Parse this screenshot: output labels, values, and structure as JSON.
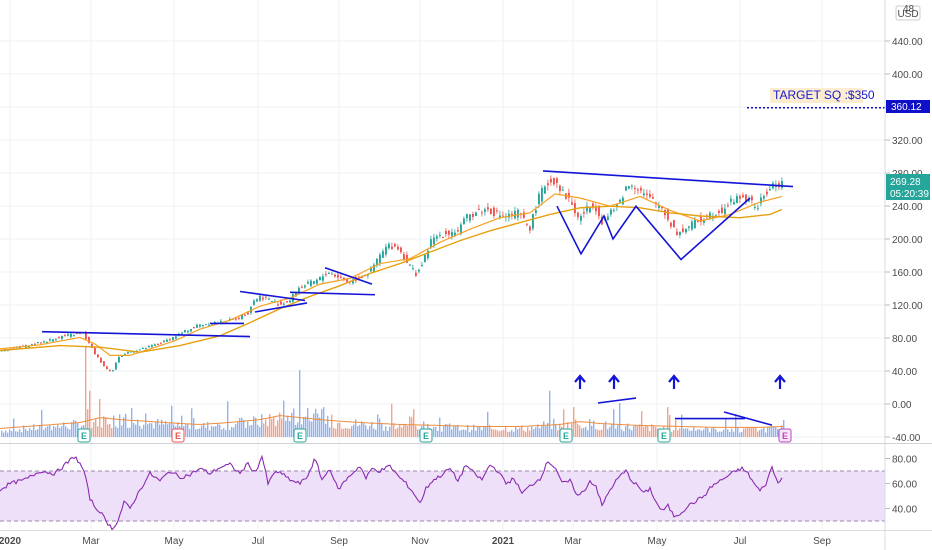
{
  "chart_data": {
    "type": "candlestick",
    "currency": "USD",
    "price_axis": {
      "range": [
        -46,
        482
      ],
      "ticks": [
        "440.00",
        "400.00",
        "360.00",
        "320.00",
        "280.00",
        "240.00",
        "200.00",
        "160.00",
        "120.00",
        "80.00",
        "40.00",
        "0.00",
        "-40.00"
      ],
      "top_partial_label": "48"
    },
    "rsi_axis": {
      "range": [
        25,
        91
      ],
      "ticks": [
        "80.00",
        "60.00",
        "40.00"
      ],
      "band": [
        30,
        70
      ]
    },
    "time_axis": {
      "labels": [
        "2020",
        "Mar",
        "May",
        "Jul",
        "Sep",
        "Nov",
        "2021",
        "Mar",
        "May",
        "Jul",
        "Sep"
      ],
      "bold_labels": [
        "2020",
        "2021"
      ]
    },
    "last_price": "269.28",
    "countdown": "05:20:39",
    "target_level": "360.12",
    "target_price": 360.12,
    "annotation": "TARGET SQ :$350",
    "price_waypoints": [
      [
        0,
        63
      ],
      [
        30,
        70
      ],
      [
        50,
        76
      ],
      [
        66,
        82
      ],
      [
        85,
        85
      ],
      [
        97,
        60
      ],
      [
        108,
        42
      ],
      [
        114,
        38
      ],
      [
        120,
        55
      ],
      [
        130,
        62
      ],
      [
        145,
        66
      ],
      [
        160,
        72
      ],
      [
        175,
        80
      ],
      [
        188,
        88
      ],
      [
        200,
        95
      ],
      [
        215,
        98
      ],
      [
        228,
        99
      ],
      [
        238,
        103
      ],
      [
        250,
        110
      ],
      [
        255,
        124
      ],
      [
        262,
        130
      ],
      [
        270,
        127
      ],
      [
        282,
        120
      ],
      [
        292,
        125
      ],
      [
        300,
        140
      ],
      [
        310,
        145
      ],
      [
        320,
        150
      ],
      [
        330,
        160
      ],
      [
        340,
        154
      ],
      [
        350,
        148
      ],
      [
        360,
        152
      ],
      [
        372,
        160
      ],
      [
        382,
        180
      ],
      [
        390,
        192
      ],
      [
        400,
        190
      ],
      [
        410,
        170
      ],
      [
        418,
        158
      ],
      [
        425,
        170
      ],
      [
        432,
        196
      ],
      [
        440,
        204
      ],
      [
        450,
        208
      ],
      [
        460,
        210
      ],
      [
        470,
        228
      ],
      [
        480,
        234
      ],
      [
        490,
        236
      ],
      [
        500,
        230
      ],
      [
        510,
        228
      ],
      [
        520,
        232
      ],
      [
        532,
        214
      ],
      [
        540,
        248
      ],
      [
        548,
        268
      ],
      [
        558,
        272
      ],
      [
        565,
        256
      ],
      [
        572,
        248
      ],
      [
        580,
        225
      ],
      [
        588,
        235
      ],
      [
        596,
        244
      ],
      [
        604,
        222
      ],
      [
        612,
        230
      ],
      [
        620,
        242
      ],
      [
        628,
        262
      ],
      [
        634,
        268
      ],
      [
        640,
        262
      ],
      [
        648,
        252
      ],
      [
        656,
        245
      ],
      [
        664,
        238
      ],
      [
        672,
        220
      ],
      [
        680,
        206
      ],
      [
        690,
        215
      ],
      [
        700,
        222
      ],
      [
        712,
        230
      ],
      [
        724,
        236
      ],
      [
        736,
        248
      ],
      [
        744,
        252
      ],
      [
        752,
        245
      ],
      [
        760,
        240
      ],
      [
        768,
        256
      ],
      [
        776,
        266
      ],
      [
        782,
        268
      ]
    ],
    "volume_waypoints": [
      [
        0,
        5
      ],
      [
        40,
        8
      ],
      [
        80,
        11
      ],
      [
        100,
        16
      ],
      [
        120,
        14
      ],
      [
        150,
        12
      ],
      [
        180,
        10
      ],
      [
        200,
        9
      ],
      [
        230,
        11
      ],
      [
        260,
        14
      ],
      [
        280,
        18
      ],
      [
        300,
        16
      ],
      [
        330,
        13
      ],
      [
        360,
        11
      ],
      [
        400,
        9
      ],
      [
        440,
        8
      ],
      [
        480,
        7
      ],
      [
        520,
        7
      ],
      [
        560,
        9
      ],
      [
        580,
        12
      ],
      [
        600,
        10
      ],
      [
        640,
        8
      ],
      [
        680,
        7
      ],
      [
        720,
        6
      ],
      [
        760,
        6
      ],
      [
        782,
        7
      ]
    ],
    "volume_spikes": [
      [
        85,
        110
      ],
      [
        89,
        55
      ],
      [
        94,
        75
      ],
      [
        99,
        45
      ],
      [
        180,
        58
      ],
      [
        227,
        42
      ],
      [
        256,
        65
      ],
      [
        299,
        80
      ],
      [
        426,
        35
      ],
      [
        549,
        55
      ],
      [
        573,
        35
      ],
      [
        619,
        40
      ],
      [
        641,
        30
      ],
      [
        667,
        35
      ],
      [
        780,
        45
      ]
    ],
    "rsi_waypoints": [
      [
        0,
        55
      ],
      [
        10,
        60
      ],
      [
        25,
        63
      ],
      [
        40,
        70
      ],
      [
        55,
        68
      ],
      [
        65,
        75
      ],
      [
        75,
        82
      ],
      [
        84,
        70
      ],
      [
        90,
        48
      ],
      [
        96,
        40
      ],
      [
        100,
        38
      ],
      [
        106,
        30
      ],
      [
        112,
        24
      ],
      [
        118,
        30
      ],
      [
        124,
        45
      ],
      [
        130,
        40
      ],
      [
        140,
        55
      ],
      [
        150,
        68
      ],
      [
        160,
        62
      ],
      [
        170,
        70
      ],
      [
        180,
        65
      ],
      [
        190,
        67
      ],
      [
        200,
        72
      ],
      [
        210,
        68
      ],
      [
        220,
        73
      ],
      [
        230,
        75
      ],
      [
        240,
        68
      ],
      [
        248,
        76
      ],
      [
        255,
        68
      ],
      [
        262,
        82
      ],
      [
        268,
        60
      ],
      [
        276,
        70
      ],
      [
        285,
        66
      ],
      [
        292,
        62
      ],
      [
        300,
        60
      ],
      [
        307,
        65
      ],
      [
        315,
        80
      ],
      [
        322,
        63
      ],
      [
        330,
        72
      ],
      [
        338,
        55
      ],
      [
        345,
        62
      ],
      [
        352,
        68
      ],
      [
        360,
        74
      ],
      [
        366,
        64
      ],
      [
        372,
        72
      ],
      [
        380,
        70
      ],
      [
        390,
        74
      ],
      [
        398,
        66
      ],
      [
        406,
        60
      ],
      [
        414,
        52
      ],
      [
        420,
        44
      ],
      [
        426,
        56
      ],
      [
        432,
        62
      ],
      [
        440,
        66
      ],
      [
        450,
        72
      ],
      [
        458,
        62
      ],
      [
        466,
        75
      ],
      [
        474,
        68
      ],
      [
        482,
        63
      ],
      [
        490,
        75
      ],
      [
        498,
        70
      ],
      [
        506,
        60
      ],
      [
        514,
        64
      ],
      [
        522,
        52
      ],
      [
        530,
        58
      ],
      [
        540,
        64
      ],
      [
        548,
        78
      ],
      [
        556,
        72
      ],
      [
        562,
        60
      ],
      [
        570,
        62
      ],
      [
        578,
        50
      ],
      [
        584,
        54
      ],
      [
        590,
        62
      ],
      [
        596,
        58
      ],
      [
        602,
        42
      ],
      [
        608,
        52
      ],
      [
        614,
        60
      ],
      [
        620,
        66
      ],
      [
        626,
        70
      ],
      [
        632,
        62
      ],
      [
        638,
        58
      ],
      [
        644,
        52
      ],
      [
        650,
        56
      ],
      [
        656,
        45
      ],
      [
        662,
        38
      ],
      [
        668,
        42
      ],
      [
        674,
        34
      ],
      [
        680,
        36
      ],
      [
        688,
        42
      ],
      [
        696,
        46
      ],
      [
        704,
        50
      ],
      [
        712,
        58
      ],
      [
        720,
        62
      ],
      [
        728,
        66
      ],
      [
        736,
        70
      ],
      [
        742,
        72
      ],
      [
        748,
        68
      ],
      [
        754,
        60
      ],
      [
        760,
        54
      ],
      [
        766,
        60
      ],
      [
        772,
        73
      ],
      [
        778,
        60
      ],
      [
        782,
        66
      ]
    ],
    "rsi_pattern_dips": [
      [
        91,
        32
      ],
      [
        104,
        29
      ],
      [
        110,
        27
      ],
      [
        116,
        30
      ],
      [
        168,
        58
      ],
      [
        676,
        36
      ],
      [
        781,
        58
      ]
    ],
    "moving_average_fast_waypoints": [
      [
        0,
        66
      ],
      [
        40,
        71
      ],
      [
        80,
        80
      ],
      [
        95,
        72
      ],
      [
        110,
        58
      ],
      [
        130,
        58
      ],
      [
        150,
        66
      ],
      [
        175,
        76
      ],
      [
        200,
        90
      ],
      [
        230,
        101
      ],
      [
        260,
        118
      ],
      [
        290,
        128
      ],
      [
        320,
        145
      ],
      [
        350,
        152
      ],
      [
        380,
        170
      ],
      [
        410,
        176
      ],
      [
        440,
        196
      ],
      [
        470,
        212
      ],
      [
        500,
        226
      ],
      [
        530,
        232
      ],
      [
        555,
        255
      ],
      [
        580,
        250
      ],
      [
        610,
        240
      ],
      [
        640,
        252
      ],
      [
        670,
        235
      ],
      [
        700,
        222
      ],
      [
        730,
        230
      ],
      [
        760,
        245
      ],
      [
        782,
        252
      ]
    ],
    "moving_average_slow_waypoints": [
      [
        0,
        64
      ],
      [
        60,
        70
      ],
      [
        100,
        68
      ],
      [
        140,
        62
      ],
      [
        180,
        70
      ],
      [
        220,
        82
      ],
      [
        250,
        98
      ],
      [
        280,
        115
      ],
      [
        310,
        130
      ],
      [
        340,
        143
      ],
      [
        370,
        158
      ],
      [
        400,
        170
      ],
      [
        430,
        184
      ],
      [
        460,
        198
      ],
      [
        490,
        210
      ],
      [
        520,
        220
      ],
      [
        550,
        230
      ],
      [
        580,
        238
      ],
      [
        610,
        240
      ],
      [
        640,
        238
      ],
      [
        670,
        232
      ],
      [
        700,
        228
      ],
      [
        740,
        226
      ],
      [
        770,
        230
      ],
      [
        782,
        236
      ]
    ],
    "earnings_markers": [
      {
        "label": "E",
        "x": 84,
        "kind": "past_beat"
      },
      {
        "label": "E",
        "x": 178,
        "kind": "past_miss"
      },
      {
        "label": "E",
        "x": 300,
        "kind": "past_beat"
      },
      {
        "label": "E",
        "x": 426,
        "kind": "past_beat"
      },
      {
        "label": "E",
        "x": 566,
        "kind": "past_beat"
      },
      {
        "label": "E",
        "x": 664,
        "kind": "past_beat"
      },
      {
        "label": "E",
        "x": 785,
        "kind": "upcoming"
      }
    ],
    "volume_arrows_x": [
      580,
      614,
      674,
      780
    ],
    "trendlines": [
      {
        "from": [
          42,
          87
        ],
        "to": [
          250,
          81
        ],
        "role": "resistance"
      },
      {
        "from": [
          210,
          97
        ],
        "to": [
          244,
          97
        ],
        "role": "resistance"
      },
      {
        "from": [
          240,
          136
        ],
        "to": [
          305,
          125
        ],
        "role": "upper"
      },
      {
        "from": [
          255,
          111
        ],
        "to": [
          307,
          122
        ],
        "role": "lower"
      },
      {
        "from": [
          290,
          135
        ],
        "to": [
          375,
          132
        ],
        "role": "support"
      },
      {
        "from": [
          325,
          165
        ],
        "to": [
          372,
          145
        ],
        "role": "upper"
      },
      {
        "from": [
          543,
          283
        ],
        "to": [
          793,
          264
        ],
        "role": "neckline"
      },
      {
        "from": [
          598,
          0
        ],
        "to": [
          636,
          6
        ],
        "role": "volume"
      },
      {
        "from": [
          675,
          -19
        ],
        "to": [
          745,
          -19
        ],
        "role": "volume"
      },
      {
        "from": [
          724,
          -11
        ],
        "to": [
          772,
          -27
        ],
        "role": "volume"
      }
    ],
    "pattern_w": [
      [
        557,
        240
      ],
      [
        581,
        182
      ],
      [
        604,
        228
      ],
      [
        613,
        200
      ],
      [
        636,
        240
      ],
      [
        681,
        175
      ],
      [
        750,
        250
      ]
    ]
  },
  "colors": {
    "up": "#26a69a",
    "down": "#ef5350",
    "vol_up": "#90b4f3",
    "vol_down": "#f4a38b",
    "ma_fast": "#f7a021",
    "ma_slow": "#e6a00d",
    "drawing": "#1414d8",
    "rsi_line": "#8a2bb0",
    "rsi_band": "#efe0fa",
    "grid": "#eef0f4",
    "target_tag": "#1010c8",
    "price_tag": "#26a69a",
    "annotation_bg": "#fcecd0",
    "annotation_text": "#1a1ad0"
  }
}
